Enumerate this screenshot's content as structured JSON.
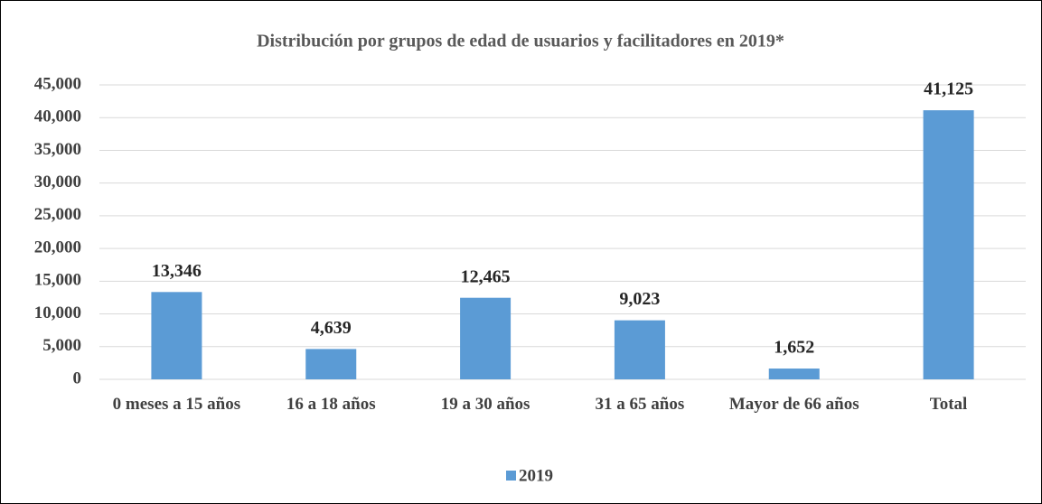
{
  "chart_data": {
    "type": "bar",
    "title": "Distribución por grupos de edad de usuarios y facilitadores en 2019*",
    "categories": [
      "0 meses a 15 años",
      "16 a 18 años",
      "19 a 30 años",
      "31 a 65 años",
      "Mayor de 66 años",
      "Total"
    ],
    "series": [
      {
        "name": "2019",
        "color": "#5b9bd5",
        "values": [
          13346,
          4639,
          12465,
          9023,
          1652,
          41125
        ],
        "value_labels": [
          "13,346",
          "4,639",
          "12,465",
          "9,023",
          "1,652",
          "41,125"
        ]
      }
    ],
    "ylim": [
      0,
      45000
    ],
    "yticks": [
      0,
      {
        "value": 5000,
        "label": "5,000"
      },
      {
        "value": 10000,
        "label": "10,000"
      },
      {
        "value": 15000,
        "label": "15,000"
      },
      {
        "value": 20000,
        "label": "20,000"
      },
      {
        "value": 25000,
        "label": "25,000"
      },
      {
        "value": 30000,
        "label": "30,000"
      },
      {
        "value": 35000,
        "label": "35,000"
      },
      {
        "value": 40000,
        "label": "40,000"
      },
      {
        "value": 45000,
        "label": "45,000"
      }
    ],
    "grid": true,
    "legend": "bottom"
  }
}
